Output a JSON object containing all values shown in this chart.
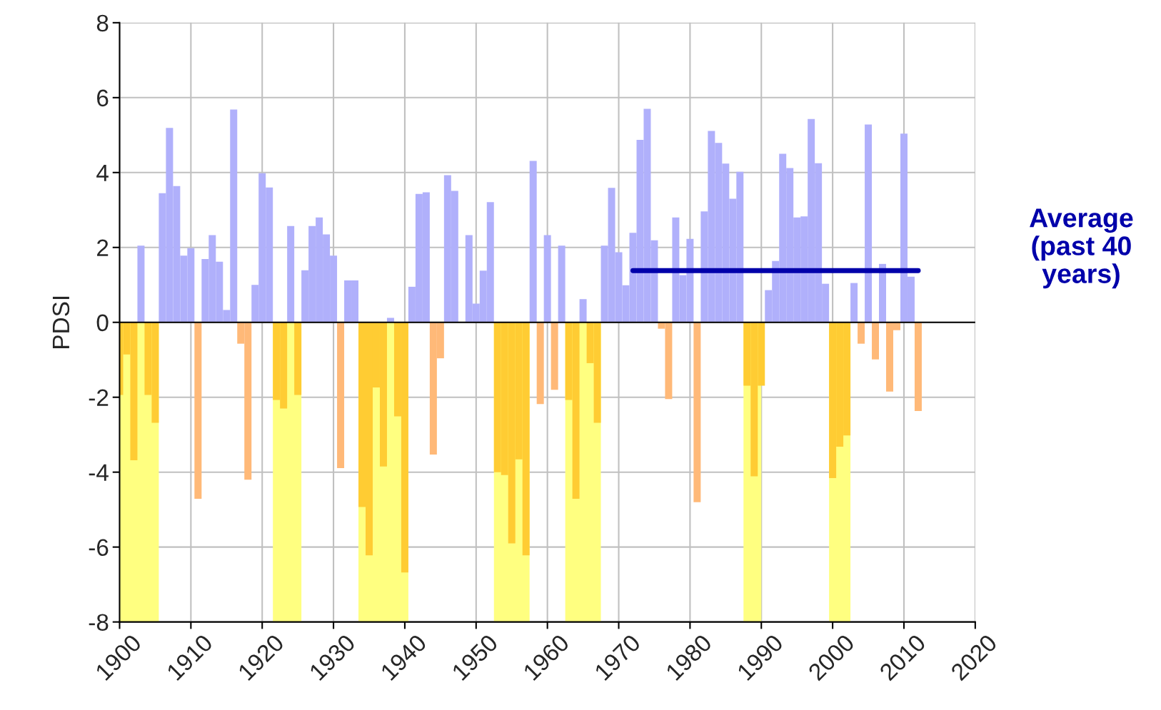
{
  "chart_data": {
    "type": "bar",
    "ylabel": "PDSI",
    "x": [
      1900,
      1901,
      1902,
      1903,
      1904,
      1905,
      1906,
      1907,
      1908,
      1909,
      1910,
      1911,
      1912,
      1913,
      1914,
      1915,
      1916,
      1917,
      1918,
      1919,
      1920,
      1921,
      1922,
      1923,
      1924,
      1925,
      1926,
      1927,
      1928,
      1929,
      1930,
      1931,
      1932,
      1933,
      1934,
      1935,
      1936,
      1937,
      1938,
      1939,
      1940,
      1941,
      1942,
      1943,
      1944,
      1945,
      1946,
      1947,
      1948,
      1949,
      1950,
      1951,
      1952,
      1953,
      1954,
      1955,
      1956,
      1957,
      1958,
      1959,
      1960,
      1961,
      1962,
      1963,
      1964,
      1965,
      1966,
      1967,
      1968,
      1969,
      1970,
      1971,
      1972,
      1973,
      1974,
      1975,
      1976,
      1977,
      1978,
      1979,
      1980,
      1981,
      1982,
      1983,
      1984,
      1985,
      1986,
      1987,
      1988,
      1989,
      1990,
      1991,
      1992,
      1993,
      1994,
      1995,
      1996,
      1997,
      1998,
      1999,
      2000,
      2001,
      2002,
      2003,
      2004,
      2005,
      2006,
      2007,
      2008,
      2009,
      2010,
      2011,
      2012
    ],
    "series": [
      {
        "values": [
          -1.94,
          -0.86,
          -3.68,
          2.05,
          -1.94,
          -2.68,
          3.45,
          5.19,
          3.64,
          1.78,
          1.98,
          -4.71,
          1.69,
          2.33,
          1.62,
          0.33,
          5.68,
          -0.57,
          -4.2,
          1.0,
          3.98,
          3.6,
          -2.07,
          -2.3,
          2.57,
          -1.94,
          1.39,
          2.57,
          2.8,
          2.35,
          1.78,
          -3.89,
          1.12,
          1.12,
          -4.93,
          -6.22,
          -1.74,
          -3.85,
          0.12,
          -2.51,
          -6.68,
          0.95,
          3.43,
          3.47,
          -3.53,
          -0.96,
          3.93,
          3.51,
          0,
          2.33,
          0.5,
          1.38,
          3.21,
          -4.0,
          -4.08,
          -5.9,
          -3.66,
          -6.22,
          4.31,
          -2.18,
          2.33,
          -1.8,
          2.05,
          -2.07,
          -4.71,
          0.62,
          -1.09,
          -2.68,
          2.05,
          3.59,
          1.87,
          0.99,
          2.39,
          4.87,
          5.7,
          2.19,
          -0.17,
          -2.05,
          2.8,
          1.26,
          2.23,
          -4.8,
          2.96,
          5.11,
          4.79,
          4.24,
          3.3,
          4.02,
          -1.69,
          -4.11,
          -1.69,
          0.86,
          1.64,
          4.5,
          4.12,
          2.8,
          2.83,
          5.43,
          4.25,
          1.03,
          -4.16,
          -3.32,
          -3.02,
          1.05,
          -0.57,
          5.28,
          -0.99,
          1.56,
          -1.85,
          -0.21,
          5.04,
          1.22,
          -2.37
        ],
        "colors": [
          "#ffcc33",
          "#ffcc33",
          "#ffcc33",
          "#b0b0fb",
          "#ffcc33",
          "#ffcc33",
          "#b0b0fb",
          "#b0b0fb",
          "#b0b0fb",
          "#b0b0fb",
          "#b0b0fb",
          "#ffb978",
          "#b0b0fb",
          "#b0b0fb",
          "#b0b0fb",
          "#b0b0fb",
          "#b0b0fb",
          "#ffb978",
          "#ffb978",
          "#b0b0fb",
          "#b0b0fb",
          "#b0b0fb",
          "#ffcc33",
          "#ffcc33",
          "#b0b0fb",
          "#ffcc33",
          "#b0b0fb",
          "#b0b0fb",
          "#b0b0fb",
          "#b0b0fb",
          "#b0b0fb",
          "#ffb978",
          "#b0b0fb",
          "#b0b0fb",
          "#ffcc33",
          "#ffcc33",
          "#ffcc33",
          "#ffcc33",
          "#b0b0fb",
          "#ffcc33",
          "#ffcc33",
          "#b0b0fb",
          "#b0b0fb",
          "#b0b0fb",
          "#ffb978",
          "#ffb978",
          "#b0b0fb",
          "#b0b0fb",
          "#b0b0fb",
          "#b0b0fb",
          "#b0b0fb",
          "#b0b0fb",
          "#b0b0fb",
          "#ffcc33",
          "#ffcc33",
          "#ffcc33",
          "#ffcc33",
          "#ffcc33",
          "#b0b0fb",
          "#ffb978",
          "#b0b0fb",
          "#ffb978",
          "#b0b0fb",
          "#ffcc33",
          "#ffcc33",
          "#b0b0fb",
          "#ffcc33",
          "#ffcc33",
          "#b0b0fb",
          "#b0b0fb",
          "#b0b0fb",
          "#b0b0fb",
          "#b0b0fb",
          "#b0b0fb",
          "#b0b0fb",
          "#b0b0fb",
          "#ffb978",
          "#ffb978",
          "#b0b0fb",
          "#b0b0fb",
          "#b0b0fb",
          "#ffb978",
          "#b0b0fb",
          "#b0b0fb",
          "#b0b0fb",
          "#b0b0fb",
          "#b0b0fb",
          "#b0b0fb",
          "#ffcc33",
          "#ffcc33",
          "#ffcc33",
          "#b0b0fb",
          "#b0b0fb",
          "#b0b0fb",
          "#b0b0fb",
          "#b0b0fb",
          "#b0b0fb",
          "#b0b0fb",
          "#b0b0fb",
          "#b0b0fb",
          "#ffcc33",
          "#ffcc33",
          "#ffcc33",
          "#b0b0fb",
          "#ffb978",
          "#b0b0fb",
          "#ffb978",
          "#b0b0fb",
          "#ffb978",
          "#ffb978",
          "#b0b0fb",
          "#b0b0fb",
          "#ffb978"
        ]
      },
      {
        "type": "line",
        "name": "Average (past 40 years)",
        "color": "#0000aa",
        "x": [
          1972,
          2012
        ],
        "values": [
          1.38,
          1.38
        ]
      }
    ],
    "bands": [
      {
        "axis": "x",
        "from": 1900,
        "to": 1905.5,
        "color": "#ffff80"
      },
      {
        "axis": "x",
        "from": 1921.5,
        "to": 1925.5,
        "color": "#ffff80"
      },
      {
        "axis": "x",
        "from": 1933.5,
        "to": 1940.5,
        "color": "#ffff80"
      },
      {
        "axis": "x",
        "from": 1952.5,
        "to": 1957.5,
        "color": "#ffff80"
      },
      {
        "axis": "x",
        "from": 1962.5,
        "to": 1967.5,
        "color": "#ffff80"
      },
      {
        "axis": "x",
        "from": 1987.5,
        "to": 1990,
        "color": "#ffff80"
      },
      {
        "axis": "x",
        "from": 1999.5,
        "to": 2002.5,
        "color": "#ffff80"
      }
    ],
    "ref_lines": [
      {
        "axis": "y",
        "value": 0,
        "color": "#000000"
      }
    ],
    "xlim": [
      1900,
      2020
    ],
    "xticks": [
      1900,
      1910,
      1920,
      1930,
      1940,
      1950,
      1960,
      1970,
      1980,
      1990,
      2000,
      2010,
      2020
    ],
    "ylim": [
      -8,
      8
    ],
    "yticks": [
      -8,
      -6,
      -4,
      -2,
      0,
      2,
      4,
      6,
      8
    ],
    "grid": true
  }
}
